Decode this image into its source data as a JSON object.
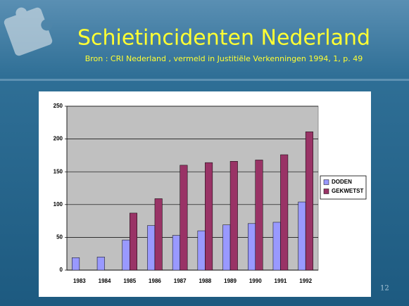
{
  "chart_data": {
    "type": "bar",
    "title": "Schietincidenten Nederland",
    "subtitle": "Bron : CRI Nederland , vermeld in Justitiële Verkenningen 1994, 1, p. 49",
    "categories": [
      "1983",
      "1984",
      "1985",
      "1986",
      "1987",
      "1988",
      "1989",
      "1990",
      "1991",
      "1992"
    ],
    "series": [
      {
        "name": "DODEN",
        "color": "#9999ff",
        "values": [
          19,
          20,
          46,
          68,
          53,
          60,
          69,
          71,
          73,
          104
        ]
      },
      {
        "name": "GEKWETST",
        "color": "#993366",
        "values": [
          null,
          null,
          87,
          109,
          160,
          164,
          166,
          168,
          176,
          211
        ]
      }
    ],
    "ylim": [
      0,
      250
    ],
    "yticks": [
      0,
      50,
      100,
      150,
      200,
      250
    ],
    "grid": true,
    "legend": "right"
  },
  "page_number": "12"
}
